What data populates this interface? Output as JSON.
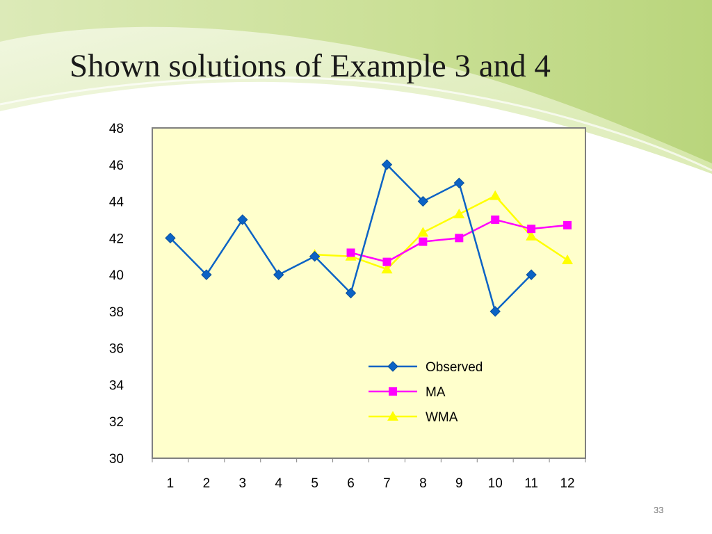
{
  "slide": {
    "title": "Shown solutions of Example 3 and 4",
    "page_number": "33"
  },
  "colors": {
    "banner_green": "#c6dd8e",
    "plot_background": "#ffffcc",
    "plot_border": "#808080"
  },
  "chart_data": {
    "type": "line",
    "title": "",
    "xlabel": "",
    "ylabel": "",
    "categories": [
      "1",
      "2",
      "3",
      "4",
      "5",
      "6",
      "7",
      "8",
      "9",
      "10",
      "11",
      "12"
    ],
    "ylim": [
      30,
      48
    ],
    "yticks": [
      "30",
      "32",
      "34",
      "36",
      "38",
      "40",
      "42",
      "44",
      "46",
      "48"
    ],
    "grid": false,
    "legend_position": "inside-bottom-right",
    "series": [
      {
        "name": "Observed",
        "color": "#0b63c5",
        "marker": "diamond",
        "values": [
          42,
          40,
          43,
          40,
          41,
          39,
          46,
          44,
          45,
          38,
          40,
          null
        ]
      },
      {
        "name": "MA",
        "color": "#ff00ff",
        "marker": "square",
        "values": [
          null,
          null,
          null,
          null,
          null,
          41.2,
          40.7,
          41.8,
          42.0,
          43.0,
          42.5,
          42.7
        ]
      },
      {
        "name": "WMA",
        "color": "#ffff00",
        "marker": "triangle",
        "values": [
          null,
          null,
          null,
          null,
          41.1,
          41.0,
          40.3,
          42.3,
          43.3,
          44.3,
          42.1,
          40.8
        ]
      }
    ]
  }
}
